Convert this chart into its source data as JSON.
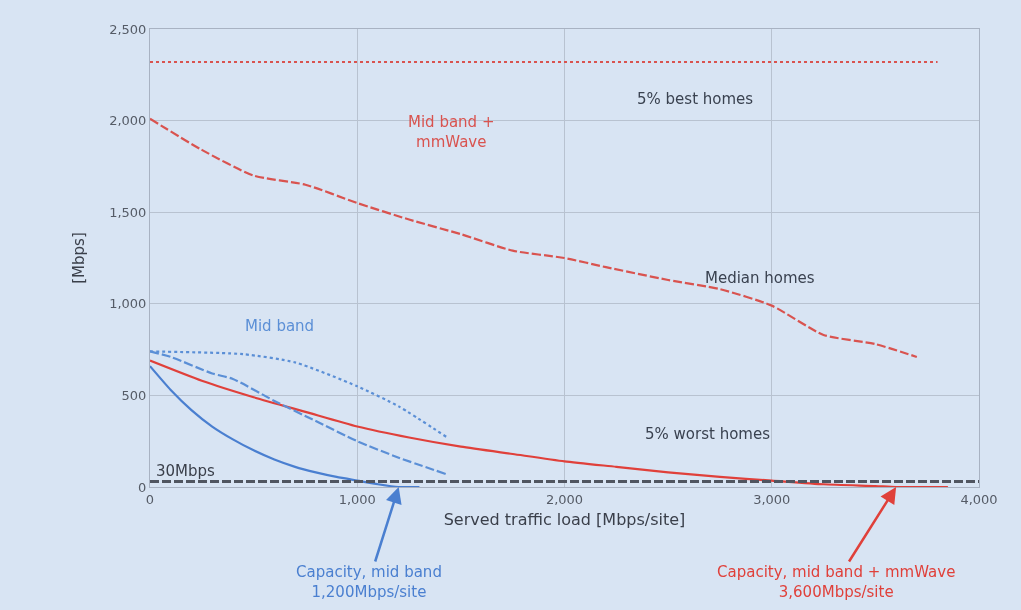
{
  "chart_data": {
    "type": "line",
    "xlabel": "Served traffic load [Mbps/site]",
    "ylabel": "[Mbps]",
    "xlim": [
      0,
      4000
    ],
    "xticks": [
      0,
      {
        "value": 1000,
        "label": "1,000"
      },
      {
        "value": 2000,
        "label": "2,000"
      },
      {
        "value": 3000,
        "label": "3,000"
      },
      {
        "value": 4000,
        "label": "4,000"
      }
    ],
    "ylim": [
      0,
      2500
    ],
    "yticks": [
      0,
      500,
      {
        "value": 1000,
        "label": "1,000"
      },
      {
        "value": 1500,
        "label": "1,500"
      },
      {
        "value": 2000,
        "label": "2,000"
      },
      {
        "value": 2500,
        "label": "2,500"
      }
    ],
    "grid": true,
    "series": [
      {
        "color": "#d9534f",
        "line_style": "dotted",
        "x": [
          0,
          3800
        ],
        "values": [
          2320,
          2320
        ]
      },
      {
        "color": "#d9534f",
        "line_style": "dashed",
        "x": [
          0,
          250,
          500,
          750,
          1000,
          1250,
          1500,
          1750,
          2000,
          2200,
          2500,
          2750,
          3000,
          3250,
          3500,
          3700
        ],
        "values": [
          2010,
          1840,
          1700,
          1650,
          1550,
          1460,
          1380,
          1290,
          1250,
          1200,
          1130,
          1080,
          990,
          830,
          780,
          710
        ]
      },
      {
        "color": "#e0403a",
        "line_style": "solid",
        "x": [
          0,
          250,
          500,
          750,
          1000,
          1250,
          1500,
          1750,
          2000,
          2250,
          2500,
          2750,
          3000,
          3250,
          3500,
          3600,
          3850
        ],
        "values": [
          690,
          580,
          490,
          410,
          330,
          270,
          220,
          180,
          140,
          110,
          80,
          55,
          35,
          15,
          5,
          0,
          0
        ]
      },
      {
        "color": "#5b8fd6",
        "line_style": "dotted",
        "x": [
          0,
          450,
          700,
          1000,
          1200,
          1435
        ],
        "values": [
          740,
          725,
          680,
          550,
          440,
          270
        ]
      },
      {
        "color": "#5b8fd6",
        "line_style": "dashed",
        "x": [
          0,
          100,
          300,
          400,
          600,
          800,
          1000,
          1200,
          1430
        ],
        "values": [
          740,
          710,
          620,
          590,
          470,
          360,
          250,
          160,
          70
        ]
      },
      {
        "color": "#4a7fd0",
        "line_style": "solid",
        "x": [
          0,
          100,
          200,
          300,
          400,
          500,
          600,
          700,
          800,
          900,
          1000,
          1100,
          1200,
          1300
        ],
        "values": [
          660,
          530,
          420,
          330,
          260,
          200,
          150,
          110,
          80,
          55,
          35,
          15,
          0,
          0
        ]
      }
    ],
    "ref_lines": [
      {
        "axis": "y",
        "value": 30,
        "label": "30Mbps",
        "color": "#505560",
        "line_style": "dashed"
      }
    ],
    "annotations": [
      "Mid band +\nmmWave",
      "5% best homes",
      "Median homes",
      "Mid band",
      "5% worst homes",
      {
        "text": "Capacity, mid band\n1,200Mbps/site",
        "x": 1200,
        "y": 0
      },
      {
        "text": "Capacity, mid band + mmWave\n3,600Mbps/site",
        "x": 3600,
        "y": 0
      }
    ]
  }
}
